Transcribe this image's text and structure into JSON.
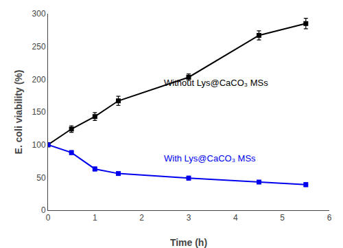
{
  "chart_data": {
    "type": "line",
    "x": [
      0,
      0.5,
      1.0,
      1.5,
      3.0,
      4.5,
      5.5
    ],
    "series": [
      {
        "color": "#000000",
        "marker": "square",
        "values": [
          100,
          124,
          143,
          167,
          203,
          267,
          285
        ],
        "yerr": [
          3,
          5,
          6,
          7,
          5,
          7,
          8
        ]
      },
      {
        "color": "#0000ee",
        "marker": "square",
        "values": [
          100,
          88,
          63,
          56,
          49,
          43,
          39
        ],
        "yerr": [
          2,
          3,
          3,
          2,
          3,
          2,
          3
        ]
      }
    ],
    "annotations": [
      {
        "text": "Without Lys@CaCO₃ MSs",
        "x": 2.45,
        "y": 195,
        "color": "#000000"
      },
      {
        "text": "With Lys@CaCO₃ MSs",
        "x": 2.45,
        "y": 79,
        "color": "#0000ee"
      }
    ],
    "xlabel": "Time (h)",
    "ylabel": "E. coli viability (%)",
    "xlim": [
      0,
      6
    ],
    "xticks": [
      0,
      1,
      2,
      3,
      4,
      5,
      6
    ],
    "ylim": [
      0,
      300
    ],
    "yticks": [
      0,
      50,
      100,
      150,
      200,
      250,
      300
    ],
    "grid": false
  }
}
